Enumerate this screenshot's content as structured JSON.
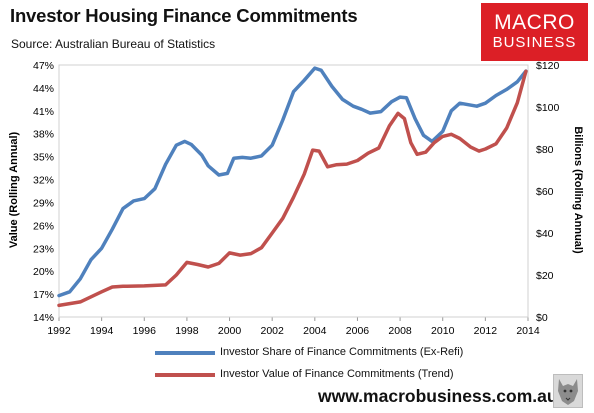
{
  "header": {
    "title": "Investor Housing Finance Commitments",
    "subtitle": "Source: Australian Bureau of Statistics"
  },
  "logo": {
    "line1": "MACRO",
    "line2": "BUSINESS"
  },
  "footer": {
    "website": "www.macrobusiness.com.au",
    "mascot_icon": "wolf-head-icon"
  },
  "colors": {
    "share": "#4f81bd",
    "value": "#c0504d",
    "logo_bg": "#dc1f26"
  },
  "chart_data": {
    "type": "line",
    "title": "Investor Housing Finance Commitments",
    "x_ticks": [
      "1992",
      "1994",
      "1996",
      "1998",
      "2000",
      "2002",
      "2004",
      "2006",
      "2008",
      "2010",
      "2012",
      "2014"
    ],
    "xlim": [
      1992,
      2014
    ],
    "left_axis": {
      "label": "Value (Rolling Annual)",
      "ticks": [
        "14%",
        "17%",
        "20%",
        "23%",
        "26%",
        "29%",
        "32%",
        "35%",
        "38%",
        "41%",
        "44%",
        "47%"
      ],
      "ylim": [
        14,
        47
      ]
    },
    "right_axis": {
      "label": "Billions (Rolling Annual)",
      "ticks": [
        "$0",
        "$20",
        "$40",
        "$60",
        "$80",
        "$100",
        "$120"
      ],
      "ylim": [
        0,
        120
      ]
    },
    "grid": false,
    "legend_position": "bottom",
    "series": [
      {
        "name": "Investor Share of Finance Commitments (Ex-Refi)",
        "axis": "left",
        "points": [
          [
            1992.0,
            16.8
          ],
          [
            1992.5,
            17.3
          ],
          [
            1993.0,
            19.0
          ],
          [
            1993.5,
            21.5
          ],
          [
            1994.0,
            23.0
          ],
          [
            1994.5,
            25.5
          ],
          [
            1995.0,
            28.2
          ],
          [
            1995.5,
            29.2
          ],
          [
            1996.0,
            29.5
          ],
          [
            1996.5,
            30.8
          ],
          [
            1997.0,
            34.0
          ],
          [
            1997.5,
            36.5
          ],
          [
            1997.9,
            37.0
          ],
          [
            1998.2,
            36.6
          ],
          [
            1998.7,
            35.2
          ],
          [
            1999.0,
            33.8
          ],
          [
            1999.5,
            32.6
          ],
          [
            1999.9,
            32.8
          ],
          [
            2000.2,
            34.8
          ],
          [
            2000.6,
            34.9
          ],
          [
            2001.0,
            34.8
          ],
          [
            2001.5,
            35.1
          ],
          [
            2002.0,
            36.5
          ],
          [
            2002.5,
            39.8
          ],
          [
            2003.0,
            43.5
          ],
          [
            2003.5,
            45.0
          ],
          [
            2004.0,
            46.6
          ],
          [
            2004.3,
            46.3
          ],
          [
            2004.8,
            44.2
          ],
          [
            2005.3,
            42.5
          ],
          [
            2005.8,
            41.6
          ],
          [
            2006.2,
            41.2
          ],
          [
            2006.6,
            40.7
          ],
          [
            2007.1,
            40.9
          ],
          [
            2007.6,
            42.2
          ],
          [
            2008.0,
            42.8
          ],
          [
            2008.3,
            42.7
          ],
          [
            2008.7,
            40.0
          ],
          [
            2009.1,
            37.8
          ],
          [
            2009.5,
            37.0
          ],
          [
            2010.0,
            38.3
          ],
          [
            2010.4,
            41.0
          ],
          [
            2010.8,
            42.0
          ],
          [
            2011.2,
            41.8
          ],
          [
            2011.6,
            41.6
          ],
          [
            2012.0,
            42.0
          ],
          [
            2012.5,
            43.0
          ],
          [
            2013.0,
            43.8
          ],
          [
            2013.5,
            44.8
          ],
          [
            2013.9,
            46.2
          ]
        ]
      },
      {
        "name": "Investor Value of Finance Commitments (Trend)",
        "axis": "right",
        "points": [
          [
            1992.0,
            5.5
          ],
          [
            1993.0,
            7.2
          ],
          [
            1994.0,
            12.0
          ],
          [
            1994.5,
            14.3
          ],
          [
            1995.0,
            14.6
          ],
          [
            1996.0,
            14.8
          ],
          [
            1997.0,
            15.3
          ],
          [
            1997.5,
            20.0
          ],
          [
            1998.0,
            26.0
          ],
          [
            1998.5,
            25.0
          ],
          [
            1999.0,
            23.8
          ],
          [
            1999.5,
            25.5
          ],
          [
            2000.0,
            30.5
          ],
          [
            2000.5,
            29.5
          ],
          [
            2001.0,
            30.2
          ],
          [
            2001.5,
            33.0
          ],
          [
            2002.0,
            40.0
          ],
          [
            2002.5,
            47.0
          ],
          [
            2003.0,
            57.0
          ],
          [
            2003.5,
            68.0
          ],
          [
            2003.9,
            79.5
          ],
          [
            2004.2,
            79.0
          ],
          [
            2004.6,
            71.5
          ],
          [
            2005.0,
            72.5
          ],
          [
            2005.5,
            72.8
          ],
          [
            2006.0,
            74.5
          ],
          [
            2006.5,
            78.0
          ],
          [
            2007.0,
            80.5
          ],
          [
            2007.5,
            91.0
          ],
          [
            2007.9,
            97.0
          ],
          [
            2008.2,
            94.5
          ],
          [
            2008.5,
            83.0
          ],
          [
            2008.8,
            77.5
          ],
          [
            2009.2,
            78.5
          ],
          [
            2009.6,
            83.0
          ],
          [
            2010.0,
            86.0
          ],
          [
            2010.4,
            87.0
          ],
          [
            2010.8,
            85.0
          ],
          [
            2011.3,
            81.0
          ],
          [
            2011.7,
            79.0
          ],
          [
            2012.0,
            80.0
          ],
          [
            2012.5,
            82.5
          ],
          [
            2013.0,
            90.0
          ],
          [
            2013.5,
            102.0
          ],
          [
            2013.9,
            117.0
          ]
        ]
      }
    ]
  }
}
